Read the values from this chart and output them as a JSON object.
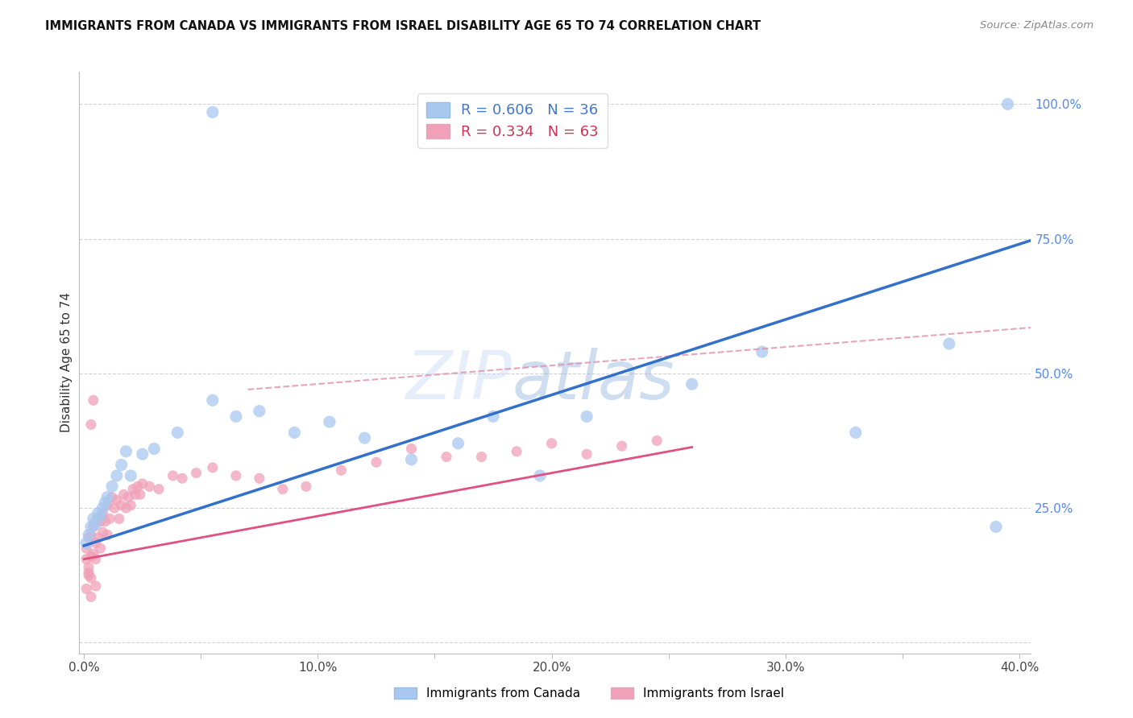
{
  "title": "IMMIGRANTS FROM CANADA VS IMMIGRANTS FROM ISRAEL DISABILITY AGE 65 TO 74 CORRELATION CHART",
  "source": "Source: ZipAtlas.com",
  "ylabel": "Disability Age 65 to 74",
  "R_canada": 0.606,
  "N_canada": 36,
  "R_israel": 0.334,
  "N_israel": 63,
  "blue_scatter_color": "#A8C8F0",
  "pink_scatter_color": "#F0A0B8",
  "blue_line_color": "#3370CC",
  "pink_line_color": "#E05080",
  "dashed_line_color": "#E090A8",
  "watermark_zip_color": "#C0D0F0",
  "watermark_atlas_color": "#A0B8E0",
  "xlim": [
    -0.002,
    0.405
  ],
  "ylim": [
    -0.02,
    1.06
  ],
  "x_ticks": [
    0.0,
    0.05,
    0.1,
    0.15,
    0.2,
    0.25,
    0.3,
    0.35,
    0.4
  ],
  "x_tick_labels": [
    "0.0%",
    "",
    "10.0%",
    "",
    "20.0%",
    "",
    "30.0%",
    "",
    "40.0%"
  ],
  "y_ticks": [
    0.0,
    0.25,
    0.5,
    0.75,
    1.0
  ],
  "y_tick_labels_right": [
    "",
    "25.0%",
    "50.0%",
    "75.0%",
    "100.0%"
  ],
  "legend_bottom": [
    "Immigrants from Canada",
    "Immigrants from Israel"
  ],
  "canada_x": [
    0.001,
    0.002,
    0.003,
    0.004,
    0.005,
    0.006,
    0.007,
    0.008,
    0.009,
    0.01,
    0.012,
    0.014,
    0.016,
    0.018,
    0.02,
    0.025,
    0.03,
    0.04,
    0.055,
    0.065,
    0.075,
    0.09,
    0.105,
    0.12,
    0.14,
    0.16,
    0.175,
    0.195,
    0.215,
    0.26,
    0.29,
    0.33,
    0.37,
    0.055,
    0.39,
    0.395
  ],
  "canada_y": [
    0.185,
    0.2,
    0.215,
    0.23,
    0.22,
    0.24,
    0.235,
    0.25,
    0.26,
    0.27,
    0.29,
    0.31,
    0.33,
    0.355,
    0.31,
    0.35,
    0.36,
    0.39,
    0.45,
    0.42,
    0.43,
    0.39,
    0.41,
    0.38,
    0.34,
    0.37,
    0.42,
    0.31,
    0.42,
    0.48,
    0.54,
    0.39,
    0.555,
    0.985,
    0.215,
    1.0
  ],
  "israel_x": [
    0.001,
    0.001,
    0.002,
    0.002,
    0.003,
    0.003,
    0.003,
    0.004,
    0.004,
    0.005,
    0.005,
    0.005,
    0.006,
    0.006,
    0.007,
    0.007,
    0.008,
    0.008,
    0.009,
    0.01,
    0.01,
    0.011,
    0.012,
    0.013,
    0.014,
    0.015,
    0.016,
    0.017,
    0.018,
    0.019,
    0.02,
    0.021,
    0.022,
    0.023,
    0.024,
    0.025,
    0.028,
    0.032,
    0.038,
    0.042,
    0.048,
    0.055,
    0.065,
    0.075,
    0.085,
    0.095,
    0.11,
    0.125,
    0.14,
    0.155,
    0.17,
    0.185,
    0.2,
    0.215,
    0.23,
    0.245,
    0.003,
    0.004,
    0.005,
    0.001,
    0.002,
    0.002,
    0.003
  ],
  "israel_y": [
    0.155,
    0.175,
    0.14,
    0.195,
    0.12,
    0.16,
    0.2,
    0.165,
    0.215,
    0.155,
    0.185,
    0.225,
    0.195,
    0.23,
    0.175,
    0.225,
    0.205,
    0.24,
    0.225,
    0.2,
    0.255,
    0.23,
    0.27,
    0.25,
    0.265,
    0.23,
    0.255,
    0.275,
    0.25,
    0.27,
    0.255,
    0.285,
    0.275,
    0.29,
    0.275,
    0.295,
    0.29,
    0.285,
    0.31,
    0.305,
    0.315,
    0.325,
    0.31,
    0.305,
    0.285,
    0.29,
    0.32,
    0.335,
    0.36,
    0.345,
    0.345,
    0.355,
    0.37,
    0.35,
    0.365,
    0.375,
    0.405,
    0.45,
    0.105,
    0.1,
    0.125,
    0.13,
    0.085
  ]
}
